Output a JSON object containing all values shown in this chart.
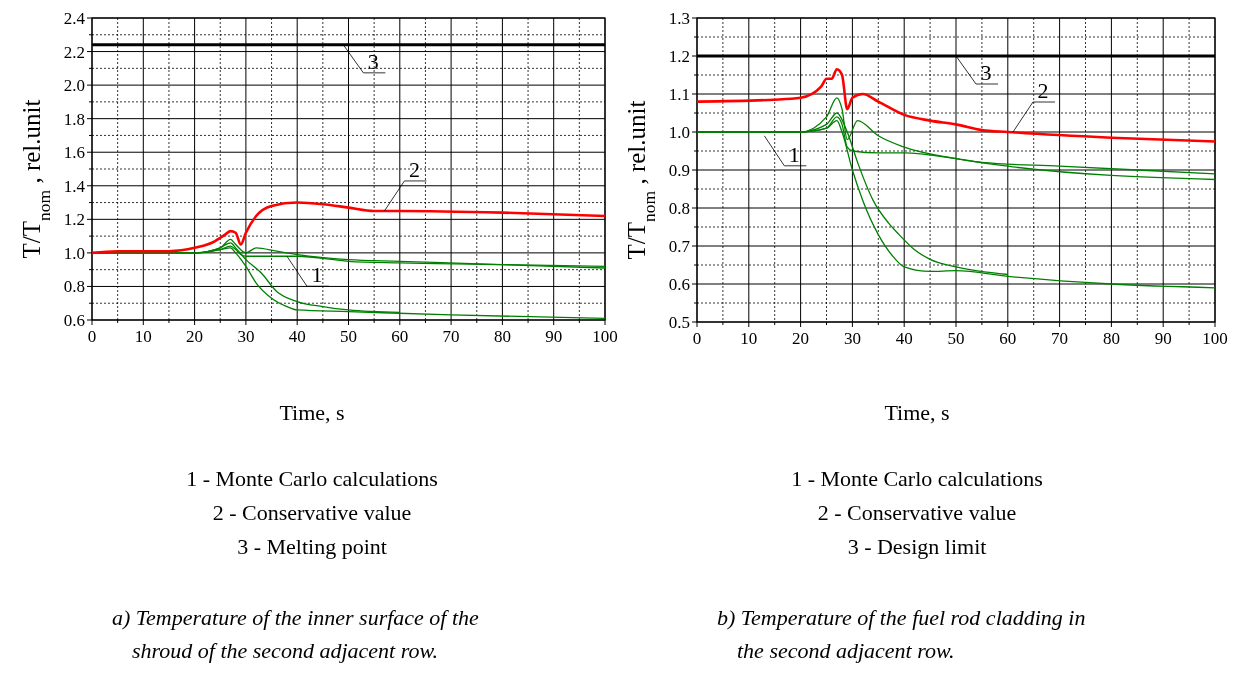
{
  "chart_data": [
    {
      "type": "line",
      "xlabel": "Time, s",
      "ylabel": "T/T$_{nom}$, rel.unit",
      "xlim": [
        0,
        100
      ],
      "ylim": [
        0.6,
        2.4
      ],
      "grid": true,
      "xticks": [
        0,
        {
          "value": 5,
          "label": null
        },
        10,
        {
          "value": 15,
          "label": null
        },
        20,
        {
          "value": 25,
          "label": null
        },
        30,
        {
          "value": 35,
          "label": null
        },
        40,
        {
          "value": 45,
          "label": null
        },
        50,
        {
          "value": 55,
          "label": null
        },
        60,
        {
          "value": 65,
          "label": null
        },
        70,
        {
          "value": 75,
          "label": null
        },
        80,
        {
          "value": 85,
          "label": null
        },
        90,
        {
          "value": 95,
          "label": null
        },
        100
      ],
      "yticks": [
        0.6,
        {
          "value": 0.7,
          "label": null
        },
        0.8,
        {
          "value": 0.9,
          "label": null
        },
        {
          "value": 1,
          "label": "1.0"
        },
        {
          "value": 1.1,
          "label": null
        },
        1.2,
        {
          "value": 1.3,
          "label": null
        },
        1.4,
        {
          "value": 1.5,
          "label": null
        },
        1.6,
        {
          "value": 1.7,
          "label": null
        },
        1.8,
        {
          "value": 1.9,
          "label": null
        },
        {
          "value": 2,
          "label": "2.0"
        },
        {
          "value": 2.1,
          "label": null
        },
        2.2,
        {
          "value": 2.3,
          "label": null
        },
        2.4
      ],
      "series": [
        {
          "color": "#008000",
          "x": [
            0,
            20,
            25,
            27,
            28,
            29,
            30,
            35,
            40,
            50,
            60,
            80,
            100
          ],
          "values": [
            1.0,
            1.0,
            1.02,
            1.04,
            1.02,
            0.99,
            0.98,
            0.98,
            0.98,
            0.95,
            0.94,
            0.93,
            0.91
          ]
        },
        {
          "color": "#008000",
          "x": [
            0,
            20,
            25,
            27,
            28,
            30,
            32,
            36,
            40,
            50,
            60,
            80,
            100
          ],
          "values": [
            1.0,
            1.0,
            1.03,
            1.08,
            1.05,
            1.0,
            1.03,
            1.01,
            0.99,
            0.96,
            0.95,
            0.93,
            0.92
          ]
        },
        {
          "color": "#008000",
          "x": [
            0,
            20,
            25,
            27,
            28,
            30,
            32,
            35,
            38,
            40,
            50,
            70,
            100
          ],
          "values": [
            1.0,
            1.0,
            1.02,
            1.03,
            1.0,
            0.92,
            0.82,
            0.73,
            0.68,
            0.66,
            0.65,
            0.63,
            0.61
          ]
        },
        {
          "color": "#008000",
          "x": [
            0,
            20,
            25,
            27,
            28,
            30,
            33,
            36,
            40,
            45,
            50,
            60
          ],
          "values": [
            1.0,
            1.0,
            1.03,
            1.06,
            1.03,
            0.96,
            0.88,
            0.77,
            0.71,
            0.68,
            0.66,
            0.645
          ]
        },
        {
          "color": "#ff0000",
          "x": [
            0,
            5,
            15,
            20,
            24,
            25,
            26,
            27,
            28,
            29,
            30,
            32,
            35,
            40,
            45,
            50,
            55,
            60,
            80,
            100
          ],
          "values": [
            1.0,
            1.01,
            1.01,
            1.03,
            1.07,
            1.09,
            1.11,
            1.13,
            1.12,
            1.05,
            1.12,
            1.22,
            1.28,
            1.3,
            1.29,
            1.27,
            1.25,
            1.25,
            1.24,
            1.22
          ]
        }
      ],
      "ref_lines": [
        {
          "axis": "y",
          "value": 2.24,
          "color": "#000000"
        }
      ],
      "annotations": [
        {
          "text": "3",
          "x": 49,
          "y": 2.24
        },
        {
          "text": "2",
          "x": 57,
          "y": 1.25
        },
        {
          "text": "1",
          "x": 38,
          "y": 0.98
        },
        "1 - Monte Carlo calculations",
        "2 - Conservative value",
        "3 - Melting point",
        "a) Temperature of the inner surface of the shroud of the second adjacent row."
      ]
    },
    {
      "type": "line",
      "xlabel": "Time, s",
      "ylabel": "T/T$_{nom}$, rel.unit",
      "xlim": [
        0,
        100
      ],
      "ylim": [
        0.5,
        1.3
      ],
      "grid": true,
      "xticks": [
        0,
        {
          "value": 5,
          "label": null
        },
        10,
        {
          "value": 15,
          "label": null
        },
        20,
        {
          "value": 25,
          "label": null
        },
        30,
        {
          "value": 35,
          "label": null
        },
        40,
        {
          "value": 45,
          "label": null
        },
        50,
        {
          "value": 55,
          "label": null
        },
        60,
        {
          "value": 65,
          "label": null
        },
        70,
        {
          "value": 75,
          "label": null
        },
        80,
        {
          "value": 85,
          "label": null
        },
        90,
        {
          "value": 95,
          "label": null
        },
        100
      ],
      "yticks": [
        0.5,
        {
          "value": 0.55,
          "label": null
        },
        0.6,
        {
          "value": 0.65,
          "label": null
        },
        0.7,
        {
          "value": 0.75,
          "label": null
        },
        0.8,
        {
          "value": 0.85,
          "label": null
        },
        0.9,
        {
          "value": 0.95,
          "label": null
        },
        {
          "value": 1,
          "label": "1.0"
        },
        {
          "value": 1.05,
          "label": null
        },
        1.1,
        {
          "value": 1.15,
          "label": null
        },
        1.2,
        {
          "value": 1.25,
          "label": null
        },
        1.3
      ],
      "series": [
        {
          "color": "#008000",
          "x": [
            0,
            20,
            25,
            27,
            28,
            29,
            30,
            35,
            40,
            50,
            55,
            70,
            100
          ],
          "values": [
            1.0,
            1.0,
            1.01,
            1.04,
            1.02,
            0.96,
            0.95,
            0.945,
            0.945,
            0.93,
            0.92,
            0.91,
            0.89
          ]
        },
        {
          "color": "#008000",
          "x": [
            0,
            20,
            25,
            27,
            28,
            29,
            31,
            35,
            40,
            50,
            60,
            100
          ],
          "values": [
            1.0,
            1.0,
            1.04,
            1.09,
            1.06,
            0.98,
            1.03,
            0.99,
            0.96,
            0.93,
            0.91,
            0.875
          ]
        },
        {
          "color": "#008000",
          "x": [
            0,
            20,
            25,
            27,
            28,
            30,
            32,
            35,
            38,
            40,
            45,
            50,
            60,
            80,
            100
          ],
          "values": [
            1.0,
            1.0,
            1.01,
            1.03,
            1.0,
            0.9,
            0.82,
            0.73,
            0.67,
            0.645,
            0.633,
            0.635,
            0.62,
            0.6,
            0.59
          ]
        },
        {
          "color": "#008000",
          "x": [
            0,
            20,
            25,
            27,
            29,
            31,
            34,
            37,
            39,
            42,
            45,
            50,
            60
          ],
          "values": [
            1.0,
            1.0,
            1.02,
            1.05,
            1.0,
            0.92,
            0.82,
            0.76,
            0.73,
            0.69,
            0.665,
            0.645,
            0.625
          ]
        },
        {
          "color": "#ff0000",
          "x": [
            0,
            15,
            20,
            24,
            25,
            26,
            27,
            28,
            29,
            30,
            32,
            35,
            40,
            45,
            50,
            55,
            60,
            80,
            100
          ],
          "values": [
            1.08,
            1.085,
            1.09,
            1.12,
            1.14,
            1.14,
            1.165,
            1.15,
            1.06,
            1.09,
            1.1,
            1.08,
            1.045,
            1.03,
            1.02,
            1.005,
            1.0,
            0.985,
            0.975
          ]
        }
      ],
      "ref_lines": [
        {
          "axis": "y",
          "value": 1.2,
          "color": "#000000"
        }
      ],
      "annotations": [
        {
          "text": "3",
          "x": 50,
          "y": 1.2
        },
        {
          "text": "2",
          "x": 61,
          "y": 1.0
        },
        {
          "text": "1",
          "x": 13,
          "y": 0.99
        },
        "1 - Monte Carlo calculations",
        "2 - Conservative value",
        "3 - Design limit",
        "b) Temperature of the fuel rod cladding in the second adjacent row."
      ]
    }
  ]
}
